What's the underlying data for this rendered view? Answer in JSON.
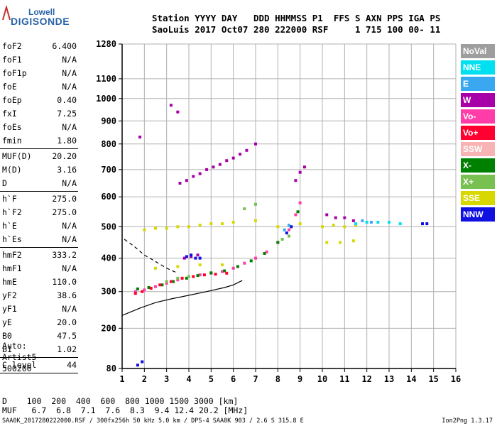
{
  "logo": {
    "line1": "Lowell",
    "line2": "DIGISONDE"
  },
  "header": {
    "line1": "Station YYYY DAY   DDD HHMMSS P1  FFS S AXN PPS IGA PS",
    "line2": "SaoLuis 2017 Oct07 280 222000 RSF     1 715 100 00- 11"
  },
  "params": {
    "group1": [
      {
        "name": "foF2",
        "value": "6.400"
      },
      {
        "name": "foF1",
        "value": "N/A"
      },
      {
        "name": "foF1p",
        "value": "N/A"
      },
      {
        "name": "foE",
        "value": "N/A"
      },
      {
        "name": "foEp",
        "value": "0.40"
      },
      {
        "name": "fxI",
        "value": "7.25"
      },
      {
        "name": "foEs",
        "value": "N/A"
      },
      {
        "name": "fmin",
        "value": "1.80"
      }
    ],
    "group2": [
      {
        "name": "MUF(D)",
        "value": "20.20"
      },
      {
        "name": "M(D)",
        "value": "3.16"
      },
      {
        "name": "D",
        "value": "N/A"
      }
    ],
    "group3": [
      {
        "name": "h`F",
        "value": "275.0"
      },
      {
        "name": "h`F2",
        "value": "275.0"
      },
      {
        "name": "h`E",
        "value": "N/A"
      },
      {
        "name": "h`Es",
        "value": "N/A"
      }
    ],
    "group4": [
      {
        "name": "hmF2",
        "value": "333.2"
      },
      {
        "name": "hmF1",
        "value": "N/A"
      },
      {
        "name": "hmE",
        "value": "110.0"
      },
      {
        "name": "yF2",
        "value": "38.6"
      },
      {
        "name": "yF1",
        "value": "N/A"
      },
      {
        "name": "yE",
        "value": "20.0"
      },
      {
        "name": "B0",
        "value": "47.5"
      },
      {
        "name": "B1",
        "value": "1.02"
      }
    ],
    "group5": [
      {
        "name": "C-level",
        "value": "44"
      }
    ]
  },
  "auto": {
    "line1": "Auto:",
    "line2": "Artist5",
    "line3": "500200"
  },
  "legend": [
    {
      "label": "NoVal",
      "color": "#9e9e9e",
      "text_color": "#ffffff"
    },
    {
      "label": "NNE",
      "color": "#00e0f0",
      "text_color": "#ffffff"
    },
    {
      "label": "E",
      "color": "#3aa8f0",
      "text_color": "#ffffff"
    },
    {
      "label": "W",
      "color": "#a800a8",
      "text_color": "#ffffff"
    },
    {
      "label": "Vo-",
      "color": "#ff3ca8",
      "text_color": "#ffffff"
    },
    {
      "label": "Vo+",
      "color": "#ff0030",
      "text_color": "#ffffff"
    },
    {
      "label": "SSW",
      "color": "#f8b4b4",
      "text_color": "#ffffff"
    },
    {
      "label": "X-",
      "color": "#008000",
      "text_color": "#ffffff"
    },
    {
      "label": "X+",
      "color": "#78c050",
      "text_color": "#ffffff"
    },
    {
      "label": "SSE",
      "color": "#d8d800",
      "text_color": "#ffffff"
    },
    {
      "label": "NNW",
      "color": "#1010e0",
      "text_color": "#ffffff"
    }
  ],
  "muf": {
    "line1": "D    100  200  400  600  800 1000 1500 3000 [km]",
    "line2": "MUF   6.7  6.8  7.1  7.6  8.3  9.4 12.4 20.2 [MHz]"
  },
  "footer": "SAA0K_2017280222000.RSF / 300fx256h 50 kHz 5.0 km / DPS-4 SAA0K 903 / 2.6 S 315.8 E",
  "version": "Ion2Png 1.3.17",
  "chart_data": {
    "type": "scatter",
    "title": "",
    "xlabel": "",
    "ylabel": "",
    "xlim": [
      1,
      16
    ],
    "ylim": [
      80,
      1280
    ],
    "y_scale": "nonlinear (ionogram virtual height)",
    "x_ticks": [
      "1",
      "2",
      "3",
      "4",
      "5",
      "6",
      "7",
      "8",
      "9",
      "10",
      "11",
      "12",
      "13",
      "14",
      "15",
      "16"
    ],
    "y_ticks": [
      "80",
      "200",
      "300",
      "400",
      "500",
      "600",
      "700",
      "800",
      "900",
      "1000",
      "1100",
      "1280"
    ],
    "grid": true,
    "legend_position": "right",
    "series": [
      {
        "name": "Vo-",
        "color": "#ff3ca8",
        "x": [
          1.6,
          2.0,
          2.5,
          3.0,
          3.5,
          4.0,
          4.5,
          5.0,
          5.5,
          6.0,
          6.5,
          7.0,
          7.5,
          8.0,
          8.5,
          8.8,
          9.0
        ],
        "y": [
          300,
          305,
          315,
          325,
          335,
          345,
          350,
          355,
          360,
          370,
          385,
          400,
          420,
          450,
          490,
          540,
          580
        ]
      },
      {
        "name": "X-",
        "color": "#008000",
        "x": [
          1.7,
          2.2,
          2.8,
          3.3,
          3.9,
          4.4,
          5.0,
          5.6,
          6.2,
          6.8,
          7.4,
          8.0,
          8.6,
          8.9
        ],
        "y": [
          308,
          312,
          320,
          330,
          340,
          348,
          356,
          362,
          375,
          392,
          415,
          450,
          500,
          550
        ]
      },
      {
        "name": "Vo+",
        "color": "#ff0030",
        "x": [
          1.6,
          1.9,
          2.3,
          2.7,
          3.2,
          3.7,
          4.2,
          4.7,
          5.2,
          5.7
        ],
        "y": [
          295,
          300,
          310,
          320,
          330,
          340,
          345,
          350,
          352,
          355
        ]
      },
      {
        "name": "SSE",
        "color": "#d8d800",
        "x": [
          2.0,
          2.5,
          3.0,
          3.5,
          4.0,
          4.5,
          5.0,
          5.5,
          6.0,
          7.0,
          8.0,
          9.0,
          10.0,
          10.5,
          11.0,
          11.5,
          2.5,
          3.5,
          4.5,
          5.5,
          10.2,
          10.8,
          11.4
        ],
        "y": [
          490,
          495,
          495,
          500,
          500,
          505,
          510,
          510,
          515,
          520,
          500,
          510,
          500,
          505,
          500,
          505,
          370,
          375,
          380,
          380,
          450,
          450,
          455
        ]
      },
      {
        "name": "W",
        "color": "#a800a8",
        "x": [
          3.6,
          3.9,
          4.2,
          4.5,
          4.8,
          5.1,
          5.4,
          5.7,
          6.0,
          6.3,
          6.6,
          7.0,
          8.8,
          9.0,
          9.2,
          10.2,
          10.6,
          11.0,
          11.4,
          3.8,
          4.1,
          4.4,
          1.8,
          3.2,
          3.5
        ],
        "y": [
          650,
          660,
          675,
          685,
          700,
          710,
          720,
          735,
          745,
          760,
          775,
          800,
          660,
          690,
          710,
          540,
          530,
          530,
          520,
          400,
          405,
          410,
          830,
          970,
          940
        ]
      },
      {
        "name": "NNE",
        "color": "#00e0f0",
        "x": [
          11.5,
          12.0,
          12.5,
          13.0,
          13.5
        ],
        "y": [
          510,
          515,
          515,
          515,
          510
        ]
      },
      {
        "name": "NNW",
        "color": "#1010e0",
        "x": [
          1.7,
          1.9,
          3.9,
          4.1,
          4.3,
          4.5,
          8.4,
          8.6,
          14.5,
          14.7
        ],
        "y": [
          90,
          100,
          405,
          410,
          400,
          400,
          480,
          500,
          510,
          510
        ]
      },
      {
        "name": "E",
        "color": "#3aa8f0",
        "x": [
          8.3,
          8.5,
          11.8,
          12.2
        ],
        "y": [
          490,
          505,
          520,
          515
        ]
      },
      {
        "name": "X+",
        "color": "#78c050",
        "x": [
          3.0,
          3.5,
          4.0,
          8.2,
          8.5,
          6.5,
          7.0
        ],
        "y": [
          330,
          340,
          345,
          460,
          470,
          560,
          575
        ]
      }
    ],
    "profile_curves": [
      {
        "name": "bottomside profile",
        "color": "#000000",
        "x": [
          1.0,
          1.8,
          2.5,
          3.2,
          4.0,
          4.8,
          5.6,
          6.0,
          6.3,
          6.4
        ],
        "y": [
          235,
          255,
          270,
          280,
          290,
          300,
          312,
          320,
          330,
          333
        ]
      },
      {
        "name": "dashed upper trace",
        "color": "#000000",
        "dashed": true,
        "x": [
          1.1,
          1.5,
          2.0,
          2.5,
          3.0,
          3.5
        ],
        "y": [
          460,
          440,
          410,
          390,
          370,
          355
        ]
      }
    ]
  }
}
